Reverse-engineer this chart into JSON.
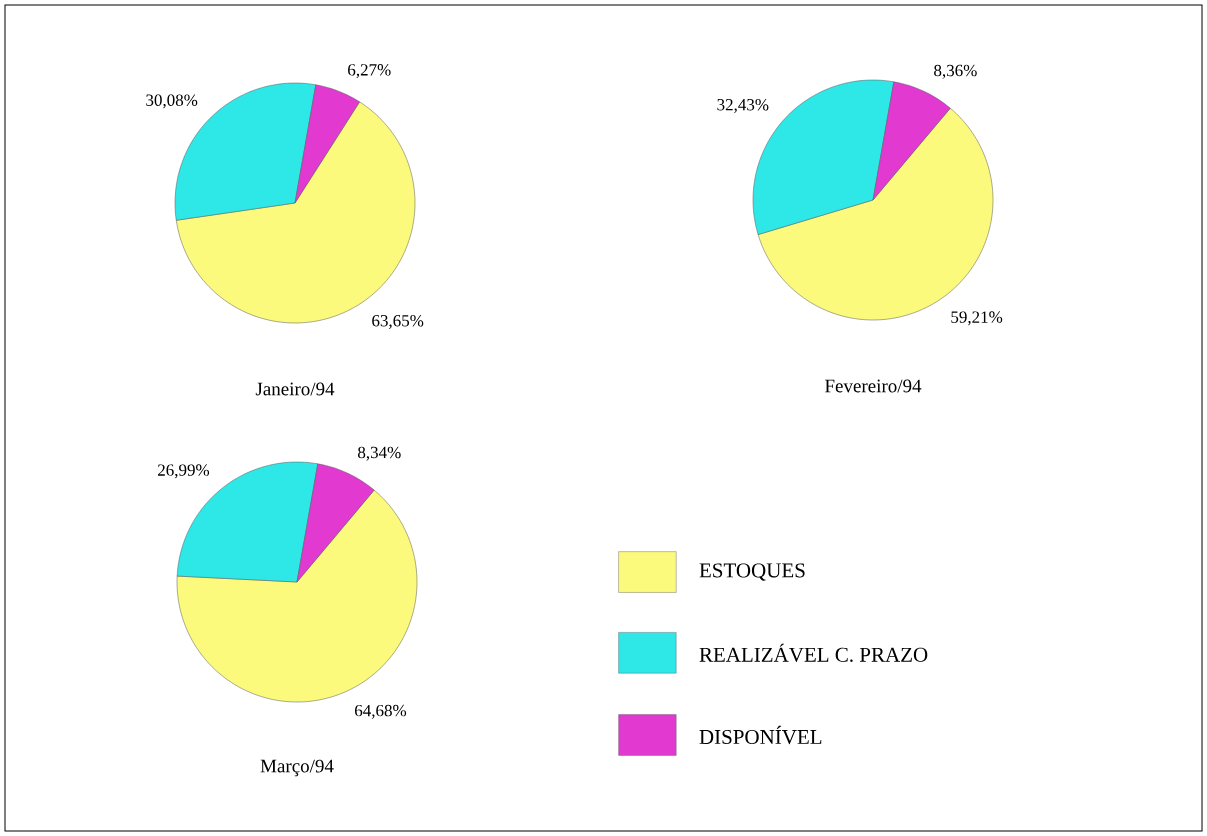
{
  "chart_data": [
    {
      "type": "pie",
      "title": "Janeiro/94",
      "categories": [
        null,
        null,
        null
      ],
      "values": [
        63.65,
        30.08,
        6.27
      ],
      "value_labels": [
        "63,65%",
        "30,08%",
        "6,27%"
      ],
      "colors": [
        "#fcfa7c",
        "#2ee8e8",
        "#e23ad0"
      ]
    },
    {
      "type": "pie",
      "title": "Fevereiro/94",
      "categories": [
        null,
        null,
        null
      ],
      "values": [
        59.21,
        32.43,
        8.36
      ],
      "value_labels": [
        "59,21%",
        "32,43%",
        "8,36%"
      ],
      "colors": [
        "#fcfa7c",
        "#2ee8e8",
        "#e23ad0"
      ]
    },
    {
      "type": "pie",
      "title": "Março/94",
      "categories": [
        "ESTOQUES",
        "REALIZÁVEL C. PRAZO",
        "DISPONÍVEL"
      ],
      "values": [
        64.68,
        26.99,
        8.34
      ],
      "value_labels": [
        "64,68%",
        "26,99%",
        "8,34%"
      ],
      "colors": [
        "#fcfa7c",
        "#2ee8e8",
        "#e23ad0"
      ],
      "legend": "right"
    }
  ]
}
